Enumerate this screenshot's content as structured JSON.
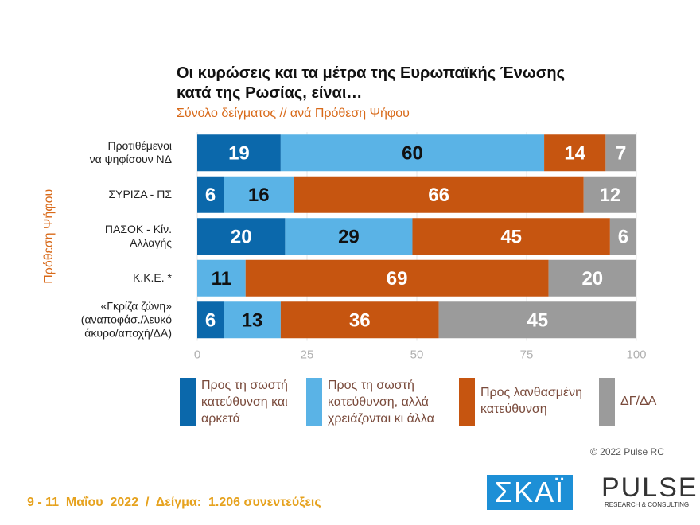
{
  "chart_data": {
    "type": "stacked-bar-horizontal",
    "title": "Οι κυρώσεις και τα μέτρα της Ευρωπαϊκής Ένωσης κατά της Ρωσίας, είναι…",
    "subtitle": "Σύνολο δείγματος // ανά Πρόθεση Ψήφου",
    "y_label": "Πρόθεση Ψήφου",
    "categories": [
      [
        "Προτιθέμενοι",
        "να ψηφίσουν  ΝΔ"
      ],
      [
        "ΣΥΡΙΖΑ - ΠΣ"
      ],
      [
        "ΠΑΣΟΚ - Κίν.",
        "Αλλαγής"
      ],
      [
        "Κ.Κ.Ε. *"
      ],
      [
        "«Γκρίζα ζώνη»",
        "(αναποφάσ./λευκό",
        "άκυρο/αποχή/ΔΑ)"
      ]
    ],
    "series": [
      {
        "name": "Προς τη σωστή κατεύθυνση και αρκετά",
        "color": "#0b68ab",
        "values": [
          19,
          6,
          20,
          null,
          6
        ]
      },
      {
        "name": "Προς τη σωστή κατεύθυνση, αλλά χρειάζονται κι άλλα",
        "color": "#5ab3e6",
        "values": [
          60,
          16,
          29,
          11,
          13
        ]
      },
      {
        "name": "Προς λανθασμένη κατεύθυνση",
        "color": "#c65510",
        "values": [
          14,
          66,
          45,
          69,
          36
        ]
      },
      {
        "name": "ΔΓ/ΔΑ",
        "color": "#9b9b9b",
        "values": [
          7,
          12,
          6,
          20,
          45
        ]
      }
    ],
    "xlim": [
      0,
      100
    ],
    "xticks": [
      0,
      25,
      50,
      75,
      100
    ]
  },
  "copyright": "© 2022 Pulse RC",
  "footer": "9 - 11  Μαΐου  2022  /  Δείγμα:  1.206 συνεντεύξεις",
  "logos": {
    "skai": "ΣΚΑΪ",
    "pulse": "PULSE",
    "pulse_sub": "RESEARCH & CONSULTING"
  }
}
